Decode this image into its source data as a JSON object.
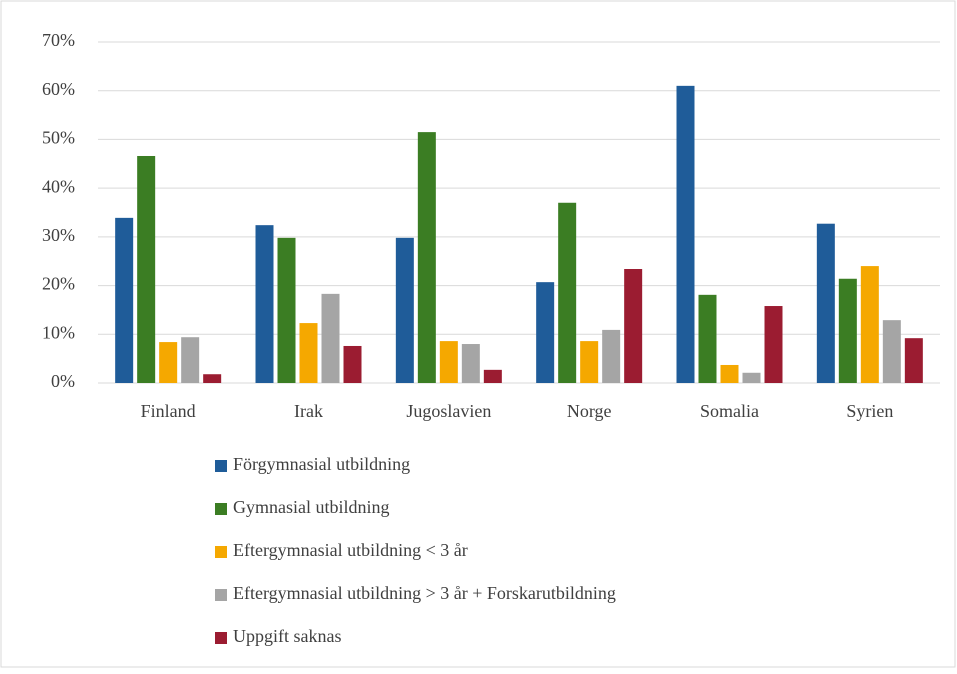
{
  "chart_data": {
    "type": "bar",
    "categories": [
      "Finland",
      "Irak",
      "Jugoslavien",
      "Norge",
      "Somalia",
      "Syrien"
    ],
    "series": [
      {
        "name": "Förgymnasial utbildning",
        "color": "#1f5c99",
        "values": [
          33.9,
          32.4,
          29.8,
          20.7,
          61.0,
          32.7
        ]
      },
      {
        "name": "Gymnasial utbildning",
        "color": "#3b7d23",
        "values": [
          46.6,
          29.8,
          51.5,
          37.0,
          18.1,
          21.4
        ]
      },
      {
        "name": "Eftergymnasial utbildning < 3 år",
        "color": "#f5a800",
        "values": [
          8.4,
          12.3,
          8.6,
          8.6,
          3.7,
          24.0
        ]
      },
      {
        "name": "Eftergymnasial utbildning > 3 år + Forskarutbildning",
        "color": "#a5a5a5",
        "values": [
          9.4,
          18.3,
          8.0,
          10.9,
          2.1,
          12.9
        ]
      },
      {
        "name": "Uppgift saknas",
        "color": "#9b1c31",
        "values": [
          1.8,
          7.6,
          2.7,
          23.4,
          15.8,
          9.2
        ]
      }
    ],
    "ylim": [
      0,
      70
    ],
    "yticks": [
      {
        "value": 0,
        "label": "0%"
      },
      {
        "value": 10,
        "label": "10%"
      },
      {
        "value": 20,
        "label": "20%"
      },
      {
        "value": 30,
        "label": "30%"
      },
      {
        "value": 40,
        "label": "40%"
      },
      {
        "value": 50,
        "label": "50%"
      },
      {
        "value": 60,
        "label": "60%"
      },
      {
        "value": 70,
        "label": "70%"
      }
    ],
    "grid": true,
    "legend": "bottom"
  }
}
